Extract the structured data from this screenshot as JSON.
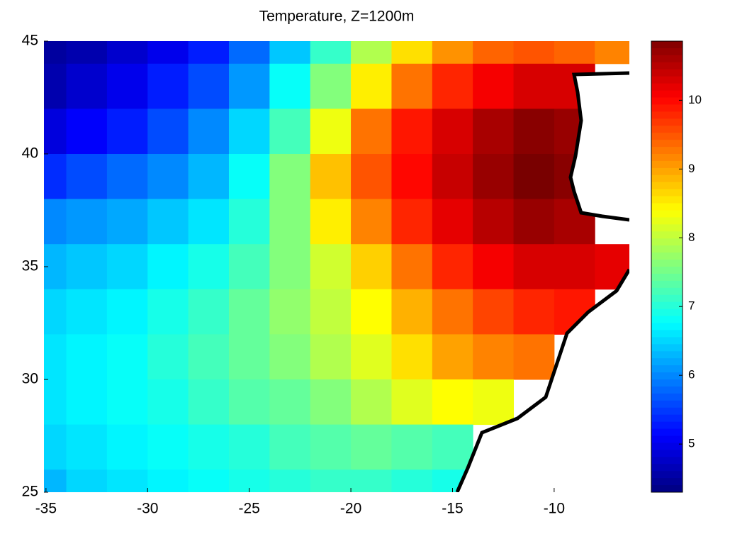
{
  "chart_data": {
    "type": "heatmap",
    "title": "Temperature, Z=1200m",
    "x": [
      -35,
      -33,
      -31,
      -29,
      -27,
      -25,
      -23,
      -21,
      -19,
      -17,
      -15,
      -13,
      -11,
      -9,
      -7
    ],
    "y": [
      45,
      43,
      41,
      39,
      37,
      35,
      33,
      31,
      29,
      27,
      25
    ],
    "values": [
      [
        4.5,
        4.6,
        4.8,
        5.0,
        5.3,
        5.8,
        6.4,
        7.1,
        7.9,
        8.6,
        9.1,
        9.4,
        9.5,
        9.4,
        9.2
      ],
      [
        4.6,
        4.8,
        5.0,
        5.3,
        5.6,
        6.1,
        6.8,
        7.6,
        8.5,
        9.3,
        9.8,
        10.1,
        10.3,
        10.3,
        null
      ],
      [
        4.9,
        5.1,
        5.3,
        5.6,
        6.0,
        6.5,
        7.2,
        8.3,
        9.3,
        9.9,
        10.3,
        10.6,
        10.8,
        10.7,
        null
      ],
      [
        5.4,
        5.6,
        5.8,
        6.0,
        6.3,
        6.8,
        7.6,
        8.8,
        9.5,
        10.0,
        10.4,
        10.7,
        10.9,
        10.8,
        null
      ],
      [
        6.0,
        6.1,
        6.2,
        6.4,
        6.6,
        7.0,
        7.6,
        8.5,
        9.2,
        9.8,
        10.2,
        10.5,
        10.7,
        10.6,
        null
      ],
      [
        6.3,
        6.4,
        6.5,
        6.7,
        6.9,
        7.2,
        7.6,
        8.1,
        8.7,
        9.3,
        9.8,
        10.1,
        10.3,
        10.3,
        10.2
      ],
      [
        6.5,
        6.6,
        6.7,
        6.9,
        7.1,
        7.4,
        7.7,
        8.0,
        8.4,
        8.9,
        9.3,
        9.6,
        9.8,
        9.9,
        null
      ],
      [
        6.6,
        6.7,
        6.8,
        7.0,
        7.2,
        7.4,
        7.6,
        7.9,
        8.2,
        8.6,
        9.0,
        9.2,
        9.3,
        null,
        null
      ],
      [
        6.6,
        6.7,
        6.8,
        6.9,
        7.1,
        7.3,
        7.4,
        7.6,
        7.9,
        8.2,
        8.4,
        8.3,
        null,
        null,
        null
      ],
      [
        6.5,
        6.6,
        6.7,
        6.8,
        6.9,
        7.0,
        7.2,
        7.3,
        7.4,
        7.3,
        7.2,
        null,
        null,
        null,
        null
      ],
      [
        6.3,
        6.5,
        6.6,
        6.7,
        6.8,
        6.9,
        7.0,
        7.1,
        7.1,
        7.0,
        6.9,
        null,
        null,
        null,
        null
      ]
    ],
    "xlim": [
      -35.1,
      -6.3
    ],
    "ylim": [
      25,
      45
    ],
    "xticks": [
      -35,
      -30,
      -25,
      -20,
      -15,
      -10
    ],
    "yticks": [
      25,
      30,
      35,
      40,
      45
    ],
    "colormap": "jet",
    "clim": [
      4.3,
      10.86
    ],
    "colorbar_ticks": [
      5,
      6,
      7,
      8,
      9,
      10
    ]
  }
}
